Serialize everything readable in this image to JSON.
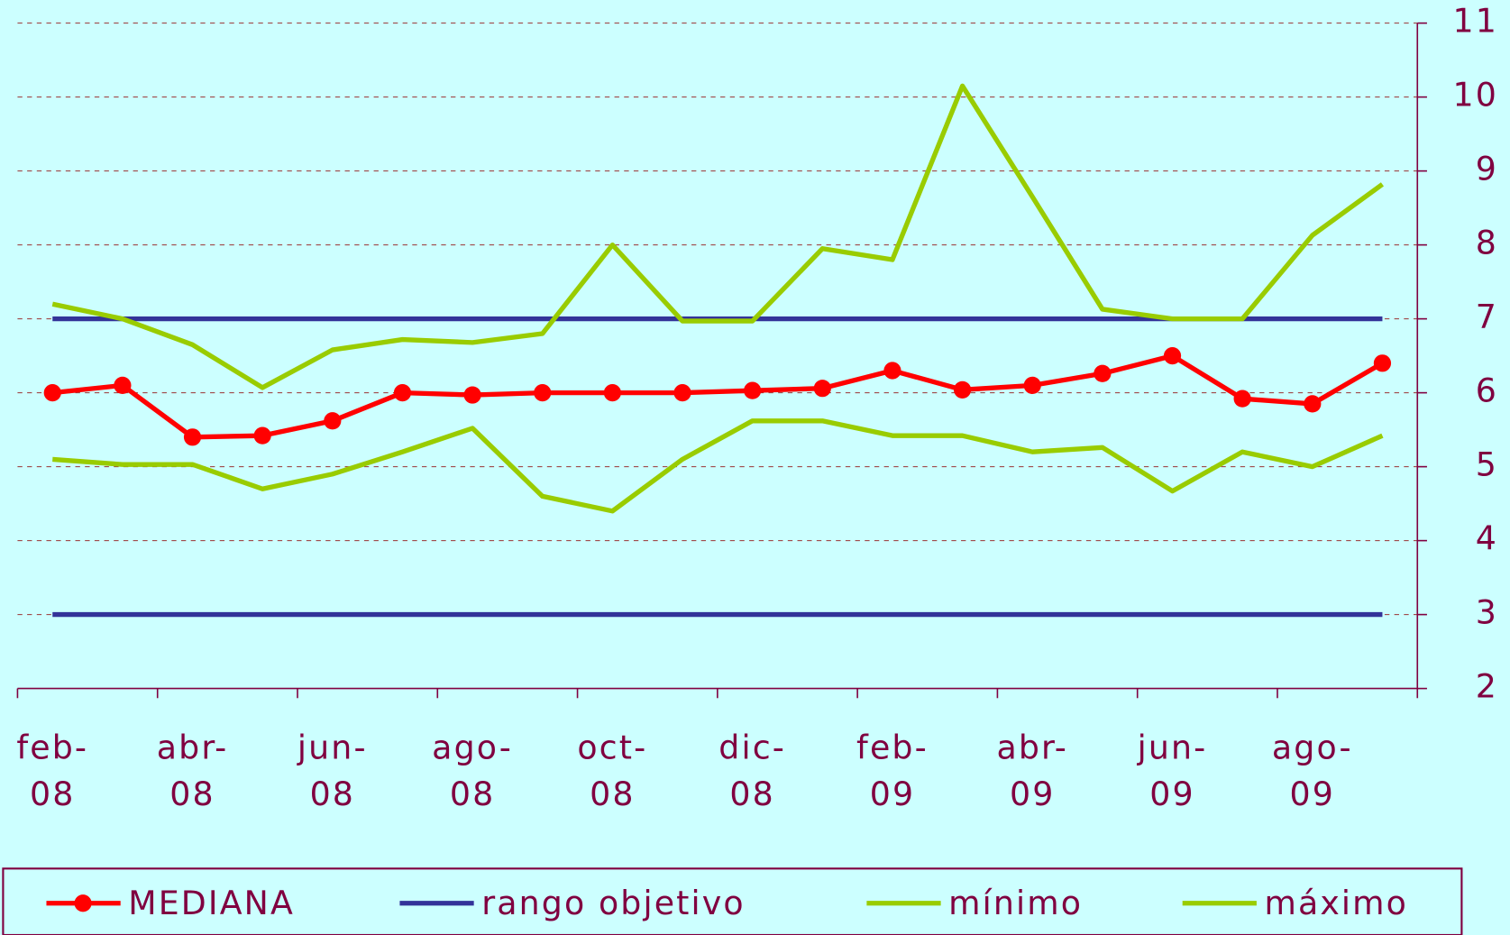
{
  "chart_data": {
    "type": "line",
    "categories": [
      "feb-08",
      null,
      "abr-08",
      null,
      "jun-08",
      null,
      "ago-08",
      null,
      "oct-08",
      null,
      "dic-08",
      null,
      "feb-09",
      null,
      "abr-09",
      null,
      "jun-09",
      null,
      "ago-09",
      null
    ],
    "series": [
      {
        "name": "MEDIANA",
        "color": "#ff0000",
        "marker": true,
        "values": [
          6.0,
          6.1,
          5.4,
          5.42,
          5.62,
          6.0,
          5.97,
          6.0,
          6.0,
          6.0,
          6.03,
          6.06,
          6.3,
          6.04,
          6.1,
          6.26,
          6.5,
          5.92,
          5.85,
          6.4
        ]
      },
      {
        "name": "rango objetivo",
        "color": "#333399",
        "values": [
          7,
          7,
          7,
          7,
          7,
          7,
          7,
          7,
          7,
          7,
          7,
          7,
          7,
          7,
          7,
          7,
          7,
          7,
          7,
          7
        ],
        "lower": [
          3,
          3,
          3,
          3,
          3,
          3,
          3,
          3,
          3,
          3,
          3,
          3,
          3,
          3,
          3,
          3,
          3,
          3,
          3,
          3
        ]
      },
      {
        "name": "mínimo",
        "color": "#99cc00",
        "values": [
          5.1,
          5.03,
          5.03,
          4.7,
          4.9,
          5.2,
          5.52,
          4.6,
          4.4,
          5.1,
          5.62,
          5.62,
          5.42,
          5.42,
          5.2,
          5.26,
          4.67,
          5.2,
          5.0,
          5.42
        ]
      },
      {
        "name": "máximo",
        "color": "#99cc00",
        "values": [
          7.2,
          7.0,
          6.65,
          6.07,
          6.58,
          6.72,
          6.68,
          6.8,
          8.0,
          6.97,
          6.97,
          7.95,
          7.8,
          10.15,
          8.65,
          7.13,
          7.0,
          7.0,
          8.13,
          8.82
        ]
      }
    ],
    "ylim": [
      2,
      11
    ],
    "yticks": [
      2,
      3,
      4,
      5,
      6,
      7,
      8,
      9,
      10,
      11
    ],
    "grid": true,
    "y_axis_side": "right",
    "legend": "bottom"
  }
}
